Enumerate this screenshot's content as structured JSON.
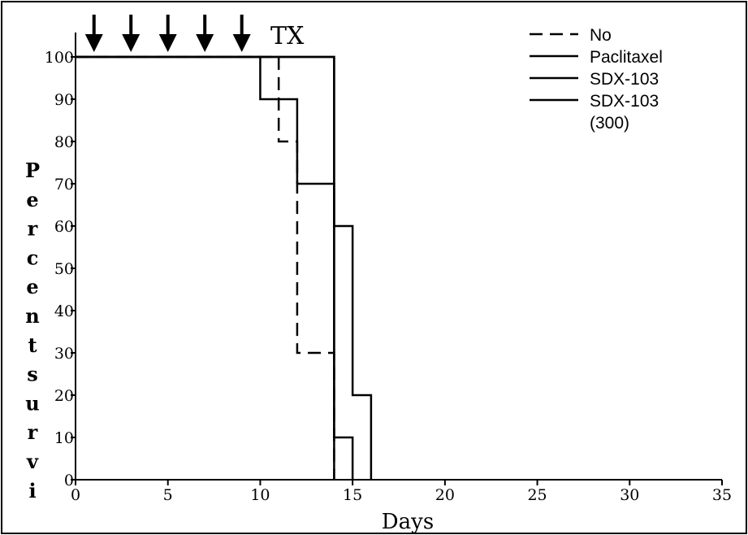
{
  "chart_data": {
    "type": "line",
    "step": true,
    "xlabel": "Days",
    "ylabel": "Percent survi",
    "xlim": [
      0,
      35
    ],
    "ylim": [
      0,
      100
    ],
    "xticks": [
      0,
      5,
      10,
      15,
      20,
      25,
      30,
      35
    ],
    "yticks": [
      0,
      10,
      20,
      30,
      40,
      50,
      60,
      70,
      80,
      90,
      100
    ],
    "annotation": "TX",
    "treatment_days": [
      1,
      3,
      5,
      7,
      9
    ],
    "legend": {
      "position": "top-right"
    },
    "series": [
      {
        "name": "No",
        "style": "dashed",
        "x": [
          0,
          11,
          12,
          14
        ],
        "y": [
          100,
          80,
          30,
          0
        ]
      },
      {
        "name": "Paclitaxel",
        "style": "solid",
        "x": [
          0,
          10,
          12,
          14
        ],
        "y": [
          100,
          90,
          70,
          0
        ]
      },
      {
        "name": "SDX-103",
        "style": "solid",
        "x": [
          0,
          14,
          15
        ],
        "y": [
          100,
          10,
          0
        ]
      },
      {
        "name": "SDX-103 (300)",
        "legend_lines": [
          "SDX-103",
          "(300)"
        ],
        "style": "solid",
        "x": [
          0,
          14,
          15,
          16
        ],
        "y": [
          100,
          60,
          20,
          0
        ]
      }
    ]
  }
}
